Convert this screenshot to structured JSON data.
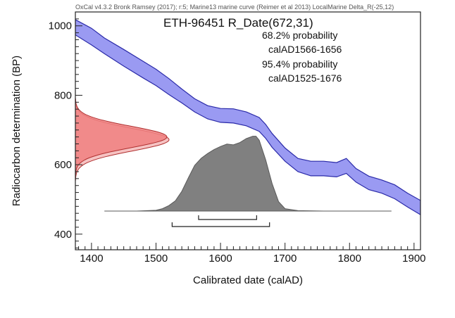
{
  "header": "OxCal v4.3.2 Bronk Ramsey (2017); r:5; Marine13 marine curve (Reimer et al 2013) LocalMarine Delta_R(-25,12)",
  "chart_data": {
    "type": "area",
    "title": "ETH-96451 R_Date(672,31)",
    "xlabel": "Calibrated date (calAD)",
    "ylabel": "Radiocarbon determination (BP)",
    "xlim": [
      1375,
      1910
    ],
    "ylim": [
      355,
      1040
    ],
    "x_ticks": [
      "1400",
      "1500",
      "1600",
      "1700",
      "1800",
      "1900"
    ],
    "y_ticks": [
      "400",
      "600",
      "800",
      "1000"
    ],
    "annotations": [
      {
        "label": "68.2% probability",
        "range": "calAD1566-1656"
      },
      {
        "label": "95.4% probability",
        "range": "calAD1525-1676"
      }
    ],
    "calibration_curve": {
      "name": "Marine13 + LocalMarine",
      "color": "#9a9af2",
      "x": [
        1375,
        1400,
        1420,
        1450,
        1480,
        1500,
        1520,
        1540,
        1560,
        1580,
        1600,
        1620,
        1640,
        1660,
        1670,
        1680,
        1700,
        1720,
        1740,
        1760,
        1780,
        1795,
        1810,
        1830,
        1850,
        1870,
        1890,
        1910
      ],
      "upper": [
        1018,
        993,
        965,
        932,
        898,
        875,
        848,
        818,
        790,
        770,
        762,
        761,
        752,
        736,
        716,
        690,
        648,
        618,
        610,
        610,
        606,
        618,
        589,
        567,
        556,
        542,
        518,
        497
      ],
      "lower": [
        974,
        945,
        920,
        884,
        850,
        828,
        802,
        778,
        752,
        732,
        722,
        720,
        712,
        696,
        676,
        650,
        610,
        580,
        568,
        568,
        565,
        575,
        550,
        528,
        518,
        502,
        478,
        456
      ]
    },
    "radiocarbon_date": {
      "mean": 672,
      "sd": 31,
      "color": "#f08080"
    },
    "calibrated_distribution": {
      "color": "#808080",
      "x": [
        1420,
        1470,
        1500,
        1510,
        1520,
        1530,
        1540,
        1550,
        1560,
        1570,
        1580,
        1590,
        1600,
        1610,
        1620,
        1630,
        1640,
        1650,
        1655,
        1660,
        1670,
        1680,
        1690,
        1700,
        1720,
        1760,
        1865
      ],
      "density": [
        0,
        0,
        0.01,
        0.03,
        0.07,
        0.13,
        0.25,
        0.42,
        0.58,
        0.67,
        0.73,
        0.78,
        0.82,
        0.85,
        0.84,
        0.87,
        0.92,
        0.95,
        0.95,
        0.9,
        0.65,
        0.35,
        0.12,
        0.03,
        0.005,
        0,
        0
      ]
    },
    "ranges": {
      "one_sigma": [
        1566,
        1656
      ],
      "two_sigma": [
        1525,
        1676
      ]
    }
  }
}
